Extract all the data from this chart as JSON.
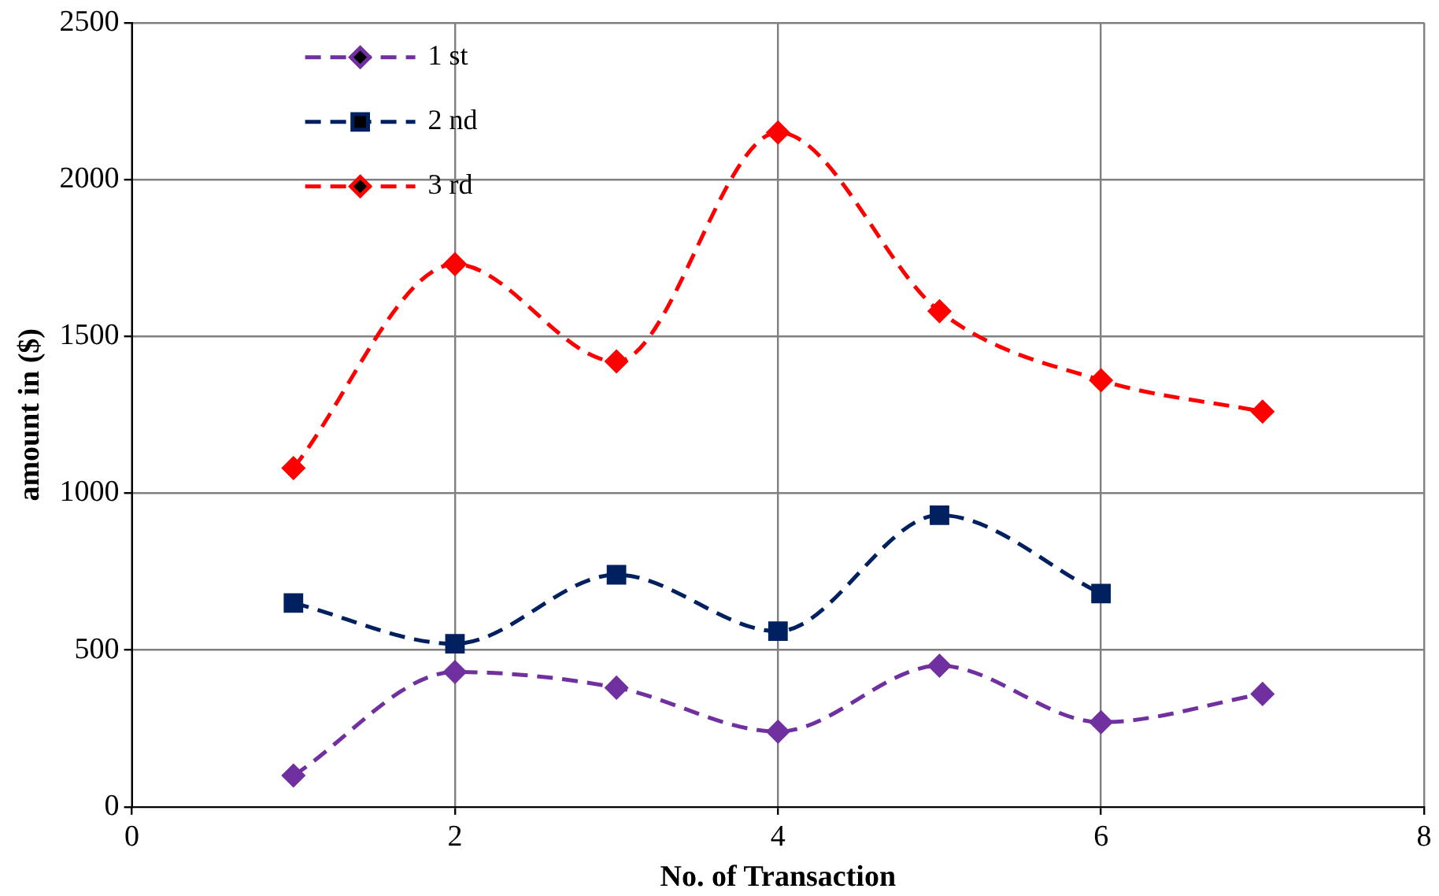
{
  "chart_data": {
    "type": "line",
    "xlabel": "No. of Transaction",
    "ylabel": "amount in ($)",
    "x": [
      1,
      2,
      3,
      4,
      5,
      6,
      7
    ],
    "series": [
      {
        "name": "1 st",
        "color": "#7030a0",
        "marker": "diamond",
        "values": [
          100,
          430,
          380,
          240,
          450,
          270,
          360
        ]
      },
      {
        "name": "2 nd",
        "color": "#002060",
        "marker": "square",
        "values": [
          650,
          520,
          740,
          560,
          930,
          680,
          null
        ]
      },
      {
        "name": "3 rd",
        "color": "#ff0000",
        "marker": "diamond",
        "values": [
          1080,
          1730,
          1420,
          2150,
          1580,
          1360,
          1260
        ]
      }
    ],
    "xlim": [
      0,
      8
    ],
    "xticks": [
      0,
      2,
      4,
      6,
      8
    ],
    "ylim": [
      0,
      2500
    ],
    "yticks": [
      0,
      500,
      1000,
      1500,
      2000,
      2500
    ],
    "grid": true,
    "legend": "top left",
    "line_style": "dashed"
  }
}
